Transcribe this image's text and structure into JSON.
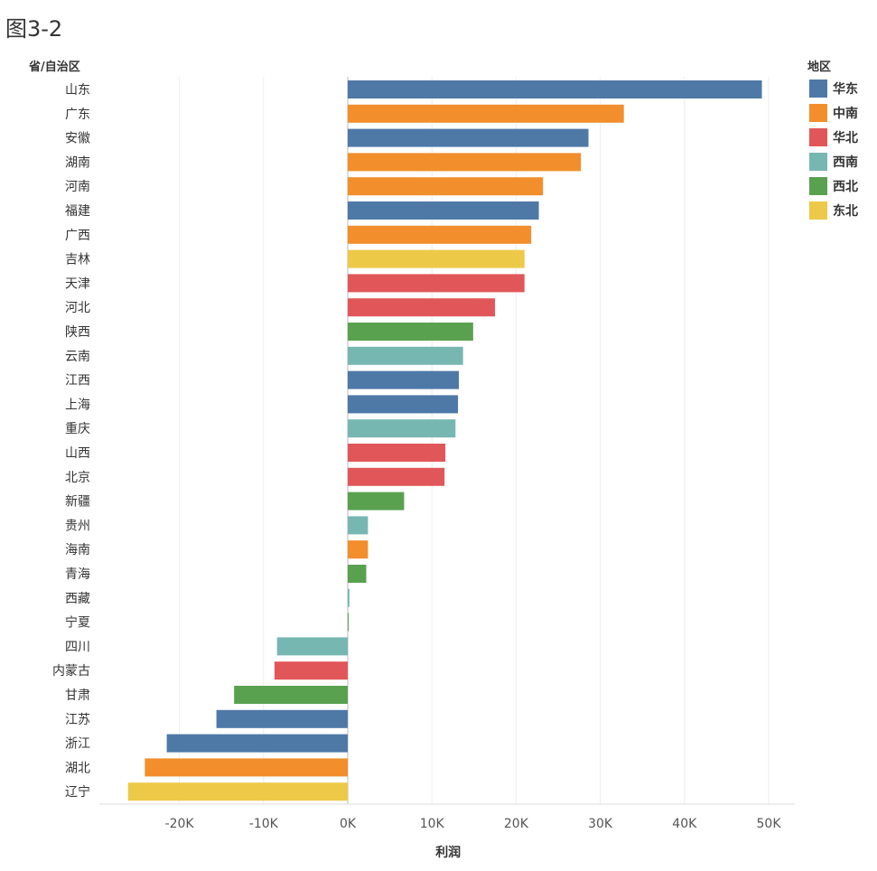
{
  "figure_label": "图3-2",
  "chart_data": {
    "type": "bar",
    "orientation": "horizontal",
    "ylabel": "省/自治区",
    "xlabel": "利润",
    "xlim": [
      -30000,
      53000
    ],
    "xticks": [
      -20000,
      -10000,
      0,
      10000,
      20000,
      30000,
      40000,
      50000
    ],
    "xtick_labels": [
      "-20K",
      "-10K",
      "0K",
      "10K",
      "20K",
      "30K",
      "40K",
      "50K"
    ],
    "grid": true,
    "legend": {
      "title": "地区",
      "placement": "top-right",
      "items": [
        {
          "name": "华东",
          "color": "#4e79a7"
        },
        {
          "name": "中南",
          "color": "#f28e2b"
        },
        {
          "name": "华北",
          "color": "#e15759"
        },
        {
          "name": "西南",
          "color": "#76b7b2"
        },
        {
          "name": "西北",
          "color": "#59a14f"
        },
        {
          "name": "东北",
          "color": "#edc948"
        }
      ]
    },
    "categories": [
      "山东",
      "广东",
      "安徽",
      "湖南",
      "河南",
      "福建",
      "广西",
      "吉林",
      "天津",
      "河北",
      "陕西",
      "云南",
      "江西",
      "上海",
      "重庆",
      "山西",
      "北京",
      "新疆",
      "贵州",
      "海南",
      "青海",
      "西藏",
      "宁夏",
      "四川",
      "内蒙古",
      "甘肃",
      "江苏",
      "浙江",
      "湖北",
      "辽宁"
    ],
    "values": [
      49200,
      32800,
      28600,
      27700,
      23200,
      22700,
      21800,
      21000,
      21000,
      17500,
      14900,
      13700,
      13200,
      13100,
      12800,
      11600,
      11500,
      6700,
      2400,
      2400,
      2200,
      200,
      100,
      -8400,
      -8700,
      -13500,
      -15600,
      -21500,
      -24100,
      -26100
    ],
    "regions": [
      "华东",
      "中南",
      "华东",
      "中南",
      "中南",
      "华东",
      "中南",
      "东北",
      "华北",
      "华北",
      "西北",
      "西南",
      "华东",
      "华东",
      "西南",
      "华北",
      "华北",
      "西北",
      "西南",
      "中南",
      "西北",
      "西南",
      "西北",
      "西南",
      "华北",
      "西北",
      "华东",
      "华东",
      "中南",
      "东北"
    ]
  }
}
